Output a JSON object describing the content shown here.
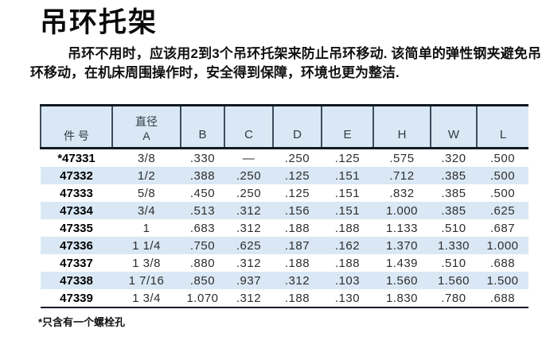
{
  "page": {
    "title": "吊环托架",
    "intro": "吊环不用时，应该用2到3个吊环托架来防止吊环移动. 该简单的弹性钢夹避免吊环移动，在机床周围操作时，安全得到保障，环境也更为整洁.",
    "footnote": "*只含有一个螺栓孔"
  },
  "table": {
    "columns": [
      "件 号",
      "直径\nA",
      "B",
      "C",
      "D",
      "E",
      "H",
      "W",
      "L"
    ],
    "rows": [
      [
        "*47331",
        "3/8",
        ".330",
        "—",
        ".250",
        ".125",
        ".575",
        ".320",
        ".500"
      ],
      [
        "47332",
        "1/2",
        ".388",
        ".250",
        ".125",
        ".151",
        ".712",
        ".385",
        ".500"
      ],
      [
        "47333",
        "5/8",
        ".450",
        ".250",
        ".125",
        ".151",
        ".832",
        ".385",
        ".500"
      ],
      [
        "47334",
        "3/4",
        ".513",
        ".312",
        ".156",
        ".151",
        "1.000",
        ".385",
        ".625"
      ],
      [
        "47335",
        "1",
        ".683",
        ".312",
        ".188",
        ".188",
        "1.133",
        ".510",
        ".687"
      ],
      [
        "47336",
        "1 1/4",
        ".750",
        ".625",
        ".187",
        ".162",
        "1.370",
        "1.330",
        "1.000"
      ],
      [
        "47337",
        "1 3/8",
        ".880",
        ".312",
        ".188",
        ".188",
        "1.439",
        ".510",
        ".688"
      ],
      [
        "47338",
        "1 7/16",
        ".850",
        ".937",
        ".312",
        ".103",
        "1.560",
        "1.560",
        "1.500"
      ],
      [
        "47339",
        "1 3/4",
        "1.070",
        ".312",
        ".188",
        ".130",
        "1.830",
        ".780",
        ".688"
      ]
    ]
  },
  "colors": {
    "row_alt_bg": "#d9e8f4",
    "header_bg": "#d9e8f4",
    "border_dark": "#101a24",
    "column_separator": "#3d4d5e",
    "text": "#2e2e2e"
  }
}
